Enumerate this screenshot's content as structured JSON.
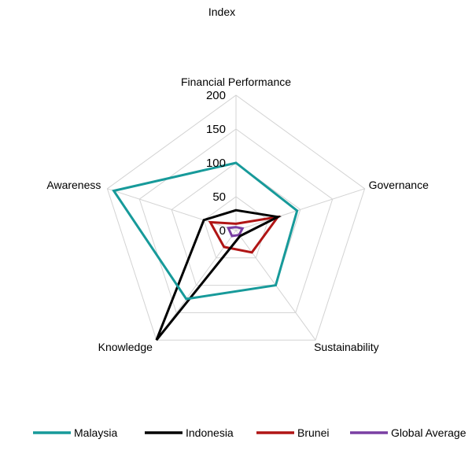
{
  "chart_data": {
    "type": "radar",
    "title": "Index",
    "categories": [
      "Financial Performance",
      "Governance",
      "Sustainability",
      "Knowledge",
      "Awareness"
    ],
    "rlim": [
      0,
      200
    ],
    "ticks": [
      "0",
      "50",
      "100",
      "150",
      "200"
    ],
    "tick_values": [
      0,
      50,
      100,
      150,
      200
    ],
    "grid": true,
    "legend_position": "bottom",
    "series": [
      {
        "name": "Malaysia",
        "color": "#179a9a",
        "values": [
          100,
          95,
          100,
          125,
          190
        ]
      },
      {
        "name": "Indonesia",
        "color": "#000000",
        "values": [
          30,
          65,
          10,
          200,
          50
        ]
      },
      {
        "name": "Brunei",
        "color": "#b01515",
        "values": [
          10,
          65,
          40,
          30,
          40
        ]
      },
      {
        "name": "Global Average",
        "color": "#7a3fa3",
        "values": [
          5,
          10,
          8,
          10,
          12
        ]
      }
    ]
  }
}
